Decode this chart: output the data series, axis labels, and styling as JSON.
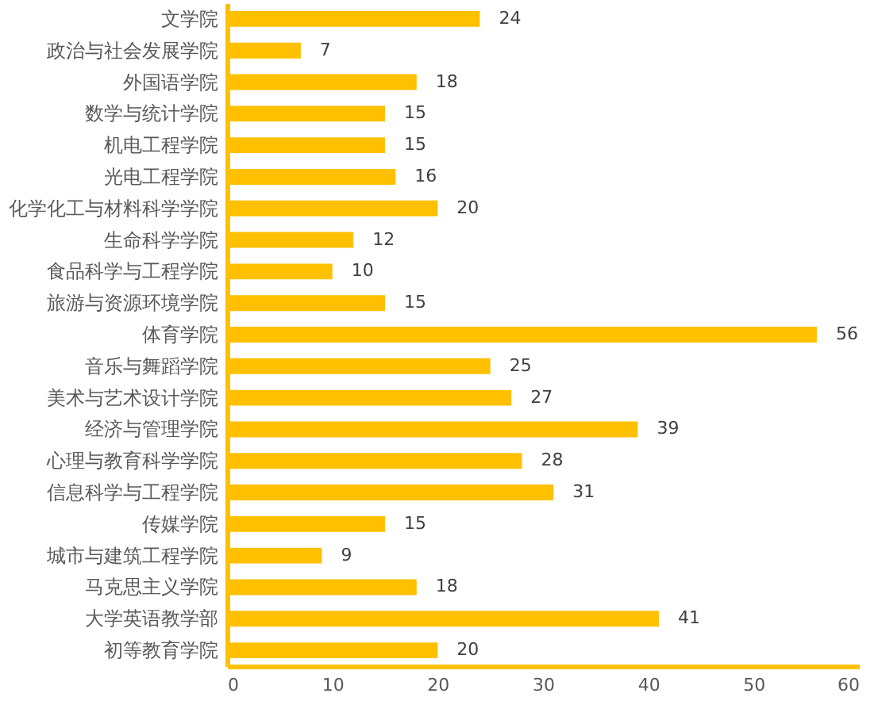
{
  "chart_data": {
    "type": "bar",
    "orientation": "horizontal",
    "categories": [
      "文学院",
      "政治与社会发展学院",
      "外国语学院",
      "数学与统计学院",
      "机电工程学院",
      "光电工程学院",
      "化学化工与材料科学学院",
      "生命科学学院",
      "食品科学与工程学院",
      "旅游与资源环境学院",
      "体育学院",
      "音乐与舞蹈学院",
      "美术与艺术设计学院",
      "经济与管理学院",
      "心理与教育科学学院",
      "信息科学与工程学院",
      "传媒学院",
      "城市与建筑工程学院",
      "马克思主义学院",
      "大学英语教学部",
      "初等教育学院"
    ],
    "values": [
      24,
      7,
      18,
      15,
      15,
      16,
      20,
      12,
      10,
      15,
      56,
      25,
      27,
      39,
      28,
      31,
      15,
      9,
      18,
      41,
      20
    ],
    "color": "#ffc000",
    "data_labels": true,
    "xlim": [
      0,
      60
    ],
    "xticks": [
      0,
      10,
      20,
      30,
      40,
      50,
      60
    ]
  }
}
